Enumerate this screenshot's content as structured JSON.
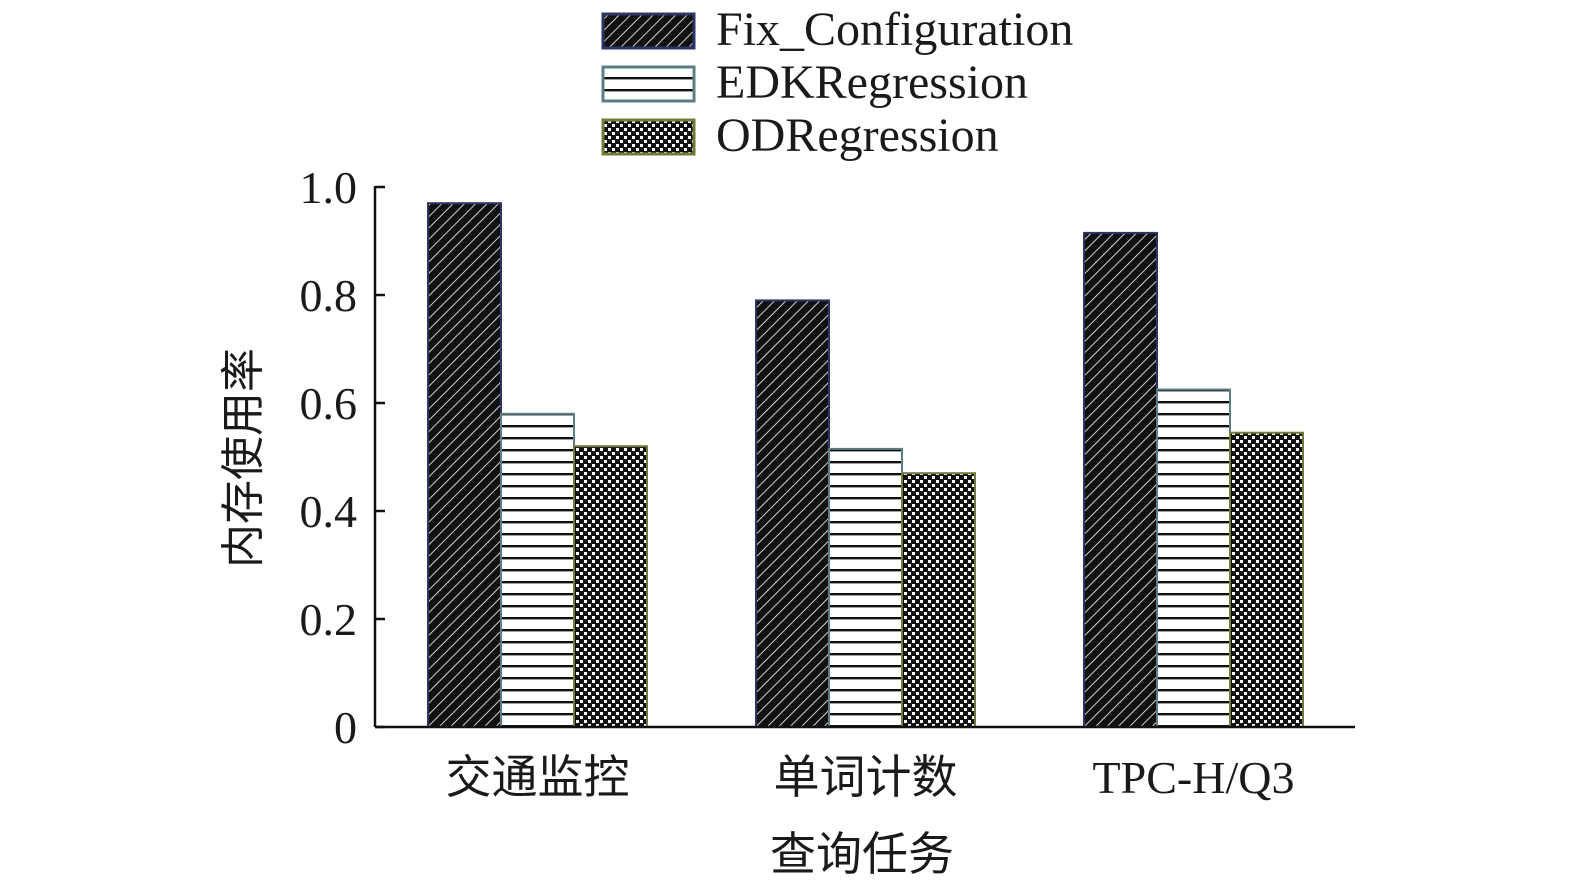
{
  "chart_data": {
    "type": "bar",
    "categories": [
      "交通监控",
      "单词计数",
      "TPC-H/Q3"
    ],
    "series": [
      {
        "name": "Fix_Configuration",
        "values": [
          0.97,
          0.79,
          0.915
        ],
        "pattern": "diagonal-hatch"
      },
      {
        "name": "EDKRegression",
        "values": [
          0.58,
          0.515,
          0.625
        ],
        "pattern": "horizontal-stripes"
      },
      {
        "name": "ODRegression",
        "values": [
          0.52,
          0.47,
          0.545
        ],
        "pattern": "checker"
      }
    ],
    "xlabel": "查询任务",
    "ylabel": "内存使用率",
    "ylim": [
      0,
      1.0
    ],
    "yticks": [
      "0",
      "0.2",
      "0.4",
      "0.6",
      "0.8",
      "1.0"
    ],
    "yticks_values": [
      0,
      0.2,
      0.4,
      0.6,
      0.8,
      1.0
    ],
    "grid": false,
    "legend_position": "top-center",
    "colors": {
      "ink": "#111111",
      "background": "#ffffff"
    }
  }
}
